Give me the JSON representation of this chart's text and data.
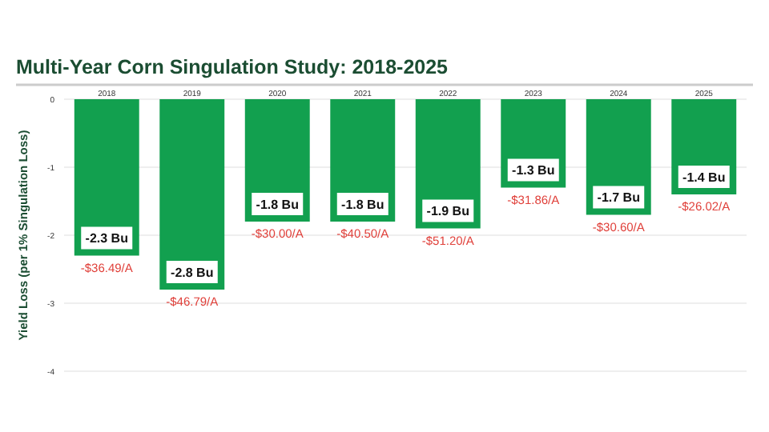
{
  "chart_data": {
    "type": "bar",
    "title": "Multi-Year Corn Singulation Study: 2018-2025",
    "ylabel": "Yield Loss (per 1% Singulation Loss)",
    "categories": [
      "2018",
      "2019",
      "2020",
      "2021",
      "2022",
      "2023",
      "2024",
      "2025"
    ],
    "values": [
      -2.3,
      -2.8,
      -1.8,
      -1.8,
      -1.9,
      -1.3,
      -1.7,
      -1.4
    ],
    "color": "#12a04f",
    "value_labels": [
      "-2.3 Bu",
      "-2.8 Bu",
      "-1.8 Bu",
      "-1.8 Bu",
      "-1.9 Bu",
      "-1.3 Bu",
      "-1.7 Bu",
      "-1.4 Bu"
    ],
    "ylim": [
      -4,
      0
    ],
    "yticks": [
      -4,
      -3,
      -2,
      -1,
      0
    ],
    "grid": "y",
    "annotations": [
      {
        "text": "-$36.49/A",
        "x": "2018",
        "y": -2.3
      },
      {
        "text": "-$46.79/A",
        "x": "2019",
        "y": -2.8
      },
      {
        "text": "-$30.00/A",
        "x": "2020",
        "y": -1.8
      },
      {
        "text": "-$40.50/A",
        "x": "2021",
        "y": -1.8
      },
      {
        "text": "-$51.20/A",
        "x": "2022",
        "y": -1.9
      },
      {
        "text": "-$31.86/A",
        "x": "2023",
        "y": -1.3
      },
      {
        "text": "-$30.60/A",
        "x": "2024",
        "y": -1.7
      },
      {
        "text": "-$26.02/A",
        "x": "2025",
        "y": -1.4
      }
    ]
  }
}
